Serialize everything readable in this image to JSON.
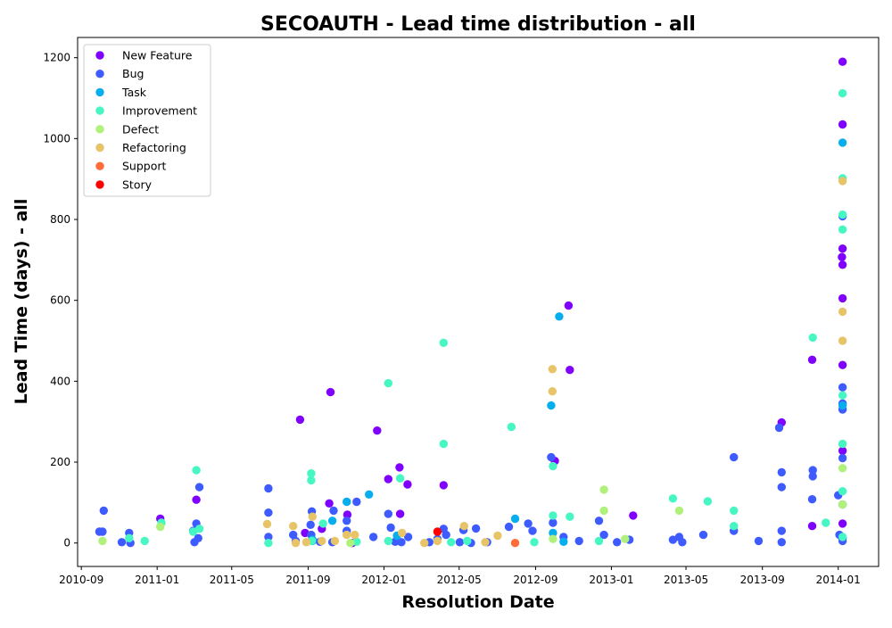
{
  "chart_data": {
    "type": "scatter",
    "title": "SECOAUTH - Lead time distribution - all",
    "xlabel": "Resolution Date",
    "ylabel": "Lead Time (days) - all",
    "x_type": "date",
    "xlim": [
      "2010-08-26",
      "2014-03-07"
    ],
    "ylim": [
      -58,
      1250
    ],
    "x_ticks": [
      "2010-09",
      "2011-01",
      "2011-05",
      "2011-09",
      "2012-01",
      "2012-05",
      "2012-09",
      "2013-01",
      "2013-05",
      "2013-09",
      "2014-01"
    ],
    "y_ticks": [
      0,
      200,
      400,
      600,
      800,
      1000,
      1200
    ],
    "grid": false,
    "legend": "top-left",
    "series": [
      {
        "name": "New Feature",
        "color": "#8000ff",
        "points": [
          [
            "2011-01-06",
            60
          ],
          [
            "2011-03-05",
            107
          ],
          [
            "2011-08-19",
            305
          ],
          [
            "2011-08-27",
            25
          ],
          [
            "2011-09-23",
            35
          ],
          [
            "2011-10-05",
            98
          ],
          [
            "2011-10-07",
            373
          ],
          [
            "2011-11-03",
            70
          ],
          [
            "2011-11-11",
            0
          ],
          [
            "2011-12-21",
            278
          ],
          [
            "2012-01-08",
            158
          ],
          [
            "2012-01-26",
            187
          ],
          [
            "2012-01-27",
            72
          ],
          [
            "2012-02-08",
            145
          ],
          [
            "2012-04-06",
            143
          ],
          [
            "2012-10-02",
            203
          ],
          [
            "2012-10-24",
            587
          ],
          [
            "2012-10-26",
            428
          ],
          [
            "2013-02-05",
            68
          ],
          [
            "2013-10-02",
            298
          ],
          [
            "2013-11-20",
            453
          ],
          [
            "2013-11-20",
            42
          ],
          [
            "2014-01-08",
            1190
          ],
          [
            "2014-01-08",
            1035
          ],
          [
            "2014-01-08",
            728
          ],
          [
            "2014-01-07",
            707
          ],
          [
            "2014-01-08",
            688
          ],
          [
            "2014-01-08",
            605
          ],
          [
            "2014-01-08",
            440
          ],
          [
            "2014-01-08",
            228
          ],
          [
            "2014-01-08",
            48
          ],
          [
            "2014-01-08",
            12
          ]
        ]
      },
      {
        "name": "Bug",
        "color": "#3e5bff",
        "points": [
          [
            "2010-09-30",
            28
          ],
          [
            "2010-10-05",
            28
          ],
          [
            "2010-10-07",
            80
          ],
          [
            "2010-11-05",
            2
          ],
          [
            "2010-11-17",
            25
          ],
          [
            "2010-11-19",
            0
          ],
          [
            "2011-02-28",
            30
          ],
          [
            "2011-03-02",
            2
          ],
          [
            "2011-03-05",
            48
          ],
          [
            "2011-03-08",
            12
          ],
          [
            "2011-03-10",
            138
          ],
          [
            "2011-06-29",
            135
          ],
          [
            "2011-06-29",
            75
          ],
          [
            "2011-06-29",
            15
          ],
          [
            "2011-08-08",
            20
          ],
          [
            "2011-08-12",
            5
          ],
          [
            "2011-09-07",
            78
          ],
          [
            "2011-09-05",
            45
          ],
          [
            "2011-09-06",
            20
          ],
          [
            "2011-09-08",
            5
          ],
          [
            "2011-09-20",
            3
          ],
          [
            "2011-10-12",
            80
          ],
          [
            "2011-10-10",
            2
          ],
          [
            "2011-11-02",
            55
          ],
          [
            "2011-11-02",
            30
          ],
          [
            "2011-11-18",
            102
          ],
          [
            "2011-12-15",
            15
          ],
          [
            "2012-01-08",
            72
          ],
          [
            "2012-01-12",
            38
          ],
          [
            "2012-01-19",
            3
          ],
          [
            "2012-01-29",
            2
          ],
          [
            "2012-02-09",
            15
          ],
          [
            "2012-03-14",
            2
          ],
          [
            "2012-03-27",
            10
          ],
          [
            "2012-04-06",
            35
          ],
          [
            "2012-04-10",
            20
          ],
          [
            "2012-05-02",
            2
          ],
          [
            "2012-05-08",
            32
          ],
          [
            "2012-05-20",
            0
          ],
          [
            "2012-05-28",
            36
          ],
          [
            "2012-06-15",
            2
          ],
          [
            "2012-07-20",
            40
          ],
          [
            "2012-08-20",
            48
          ],
          [
            "2012-08-27",
            30
          ],
          [
            "2012-09-26",
            212
          ],
          [
            "2012-09-29",
            50
          ],
          [
            "2012-10-16",
            15
          ],
          [
            "2012-11-10",
            5
          ],
          [
            "2012-12-12",
            55
          ],
          [
            "2012-12-20",
            20
          ],
          [
            "2013-01-10",
            2
          ],
          [
            "2013-01-30",
            8
          ],
          [
            "2013-04-10",
            8
          ],
          [
            "2013-04-20",
            15
          ],
          [
            "2013-04-25",
            2
          ],
          [
            "2013-05-29",
            20
          ],
          [
            "2013-07-17",
            212
          ],
          [
            "2013-07-17",
            30
          ],
          [
            "2013-08-26",
            5
          ],
          [
            "2013-09-28",
            285
          ],
          [
            "2013-10-02",
            175
          ],
          [
            "2013-10-02",
            138
          ],
          [
            "2013-10-02",
            30
          ],
          [
            "2013-10-02",
            2
          ],
          [
            "2013-11-21",
            180
          ],
          [
            "2013-11-21",
            165
          ],
          [
            "2013-11-20",
            108
          ],
          [
            "2014-01-01",
            118
          ],
          [
            "2014-01-03",
            20
          ],
          [
            "2014-01-08",
            808
          ],
          [
            "2014-01-08",
            385
          ],
          [
            "2014-01-08",
            345
          ],
          [
            "2014-01-08",
            330
          ],
          [
            "2014-01-08",
            210
          ],
          [
            "2014-01-08",
            95
          ],
          [
            "2014-01-08",
            5
          ]
        ]
      },
      {
        "name": "Task",
        "color": "#06aeed",
        "points": [
          [
            "2011-09-08",
            8
          ],
          [
            "2011-10-10",
            55
          ],
          [
            "2011-11-02",
            102
          ],
          [
            "2011-12-08",
            120
          ],
          [
            "2012-01-22",
            18
          ],
          [
            "2012-07-30",
            60
          ],
          [
            "2012-09-26",
            340
          ],
          [
            "2012-09-29",
            25
          ],
          [
            "2012-10-09",
            560
          ],
          [
            "2012-10-16",
            3
          ],
          [
            "2014-01-08",
            990
          ],
          [
            "2014-01-08",
            340
          ]
        ]
      },
      {
        "name": "Improvement",
        "color": "#46f7c3",
        "points": [
          [
            "2010-11-17",
            12
          ],
          [
            "2010-12-12",
            5
          ],
          [
            "2011-01-08",
            50
          ],
          [
            "2011-02-28",
            28
          ],
          [
            "2011-03-05",
            180
          ],
          [
            "2011-03-10",
            35
          ],
          [
            "2011-06-29",
            0
          ],
          [
            "2011-09-06",
            172
          ],
          [
            "2011-09-06",
            155
          ],
          [
            "2011-09-07",
            5
          ],
          [
            "2011-09-25",
            48
          ],
          [
            "2011-11-18",
            3
          ],
          [
            "2012-01-08",
            395
          ],
          [
            "2012-01-08",
            5
          ],
          [
            "2012-01-27",
            160
          ],
          [
            "2012-04-06",
            495
          ],
          [
            "2012-04-06",
            245
          ],
          [
            "2012-04-18",
            2
          ],
          [
            "2012-05-14",
            5
          ],
          [
            "2012-07-24",
            287
          ],
          [
            "2012-08-30",
            2
          ],
          [
            "2012-09-29",
            190
          ],
          [
            "2012-09-29",
            68
          ],
          [
            "2012-10-26",
            65
          ],
          [
            "2012-12-12",
            5
          ],
          [
            "2013-04-10",
            110
          ],
          [
            "2013-06-05",
            103
          ],
          [
            "2013-07-17",
            80
          ],
          [
            "2013-07-17",
            42
          ],
          [
            "2013-11-21",
            508
          ],
          [
            "2013-12-12",
            50
          ],
          [
            "2014-01-08",
            1112
          ],
          [
            "2014-01-08",
            902
          ],
          [
            "2014-01-08",
            812
          ],
          [
            "2014-01-08",
            775
          ],
          [
            "2014-01-08",
            365
          ],
          [
            "2014-01-08",
            245
          ],
          [
            "2014-01-08",
            128
          ],
          [
            "2014-01-08",
            15
          ]
        ]
      },
      {
        "name": "Defect",
        "color": "#aff17a",
        "points": [
          [
            "2010-10-05",
            5
          ],
          [
            "2011-01-06",
            40
          ],
          [
            "2011-11-08",
            0
          ],
          [
            "2012-09-29",
            10
          ],
          [
            "2012-12-20",
            132
          ],
          [
            "2012-12-20",
            80
          ],
          [
            "2013-01-23",
            10
          ],
          [
            "2013-04-20",
            80
          ],
          [
            "2014-01-08",
            185
          ],
          [
            "2014-01-08",
            95
          ]
        ]
      },
      {
        "name": "Refactoring",
        "color": "#e8c468",
        "points": [
          [
            "2011-06-27",
            47
          ],
          [
            "2011-08-08",
            42
          ],
          [
            "2011-08-12",
            0
          ],
          [
            "2011-08-29",
            2
          ],
          [
            "2011-09-08",
            65
          ],
          [
            "2011-09-23",
            5
          ],
          [
            "2011-10-14",
            5
          ],
          [
            "2011-11-02",
            20
          ],
          [
            "2011-11-15",
            20
          ],
          [
            "2012-01-30",
            25
          ],
          [
            "2012-03-06",
            0
          ],
          [
            "2012-03-27",
            5
          ],
          [
            "2012-05-09",
            42
          ],
          [
            "2012-06-12",
            2
          ],
          [
            "2012-07-02",
            18
          ],
          [
            "2012-09-28",
            430
          ],
          [
            "2012-09-28",
            375
          ],
          [
            "2014-01-08",
            895
          ],
          [
            "2014-01-08",
            572
          ],
          [
            "2014-01-08",
            500
          ]
        ]
      },
      {
        "name": "Support",
        "color": "#ff6c38",
        "points": [
          [
            "2012-07-30",
            0
          ]
        ]
      },
      {
        "name": "Story",
        "color": "#ff0000",
        "points": [
          [
            "2012-03-27",
            28
          ]
        ]
      }
    ]
  }
}
